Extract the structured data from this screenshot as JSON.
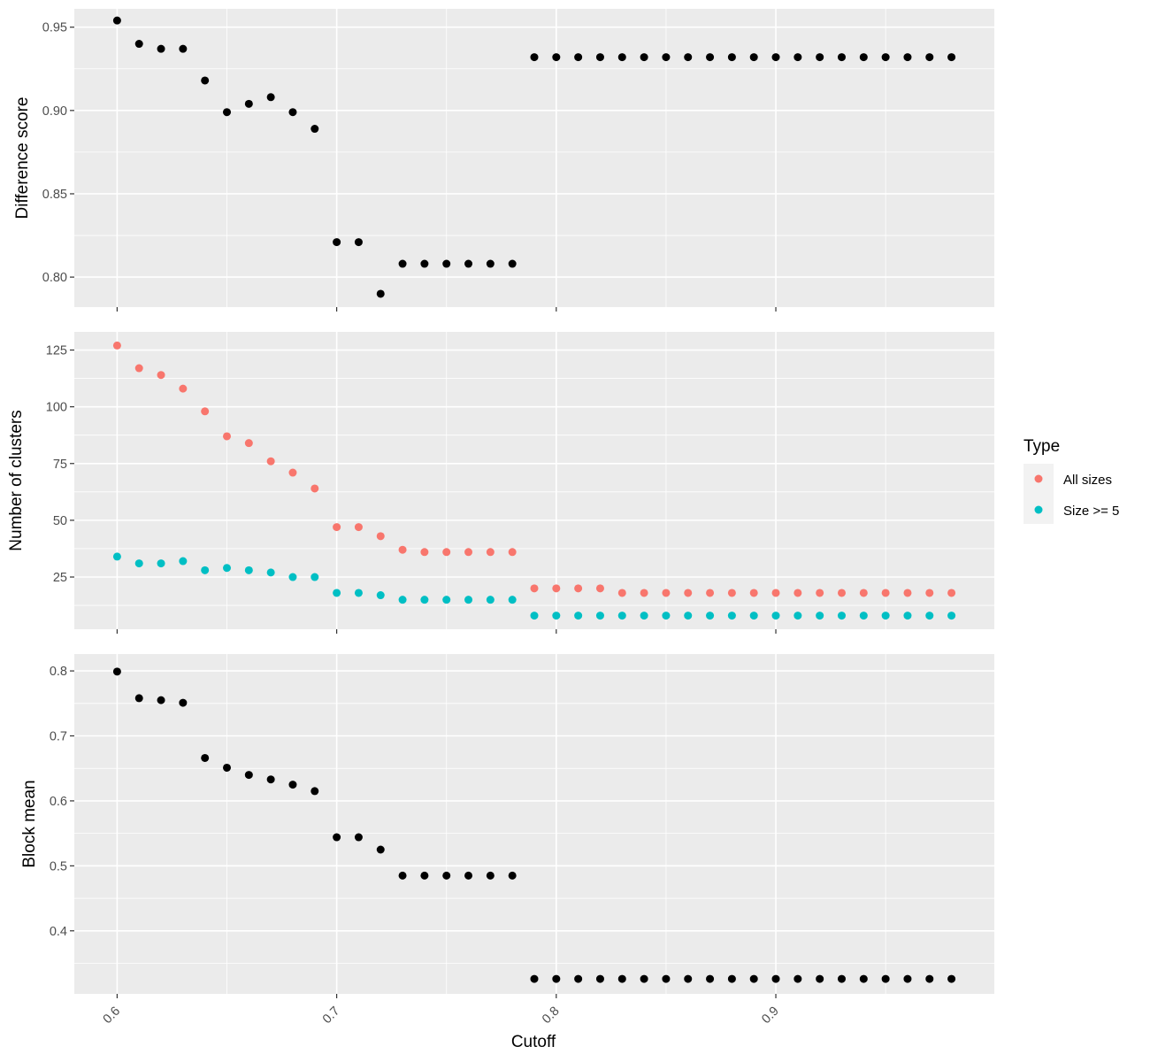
{
  "chart_data": [
    {
      "type": "scatter",
      "ylabel": "Difference score",
      "xlabel": "",
      "xlim": [
        0.5805,
        0.9995
      ],
      "ylim": [
        0.782,
        0.961
      ],
      "x_ticks": [
        0.6,
        0.7,
        0.8,
        0.9
      ],
      "x_tick_labels": [],
      "y_ticks": [
        0.8,
        0.85,
        0.9,
        0.95
      ],
      "y_tick_labels": [
        "0.80",
        "0.85",
        "0.90",
        "0.95"
      ],
      "series": [
        {
          "color": "#000000",
          "x": [
            0.6,
            0.61,
            0.62,
            0.63,
            0.64,
            0.65,
            0.66,
            0.67,
            0.68,
            0.69,
            0.7,
            0.71,
            0.72,
            0.73,
            0.74,
            0.75,
            0.76,
            0.77,
            0.78,
            0.79,
            0.8,
            0.81,
            0.82,
            0.83,
            0.84,
            0.85,
            0.86,
            0.87,
            0.88,
            0.89,
            0.9,
            0.91,
            0.92,
            0.93,
            0.94,
            0.95,
            0.96,
            0.97,
            0.98
          ],
          "y": [
            0.954,
            0.94,
            0.937,
            0.937,
            0.918,
            0.899,
            0.904,
            0.908,
            0.899,
            0.889,
            0.821,
            0.821,
            0.79,
            0.808,
            0.808,
            0.808,
            0.808,
            0.808,
            0.808,
            0.932,
            0.932,
            0.932,
            0.932,
            0.932,
            0.932,
            0.932,
            0.932,
            0.932,
            0.932,
            0.932,
            0.932,
            0.932,
            0.932,
            0.932,
            0.932,
            0.932,
            0.932,
            0.932,
            0.932
          ]
        }
      ]
    },
    {
      "type": "scatter",
      "ylabel": "Number of clusters",
      "xlabel": "",
      "xlim": [
        0.5805,
        0.9995
      ],
      "ylim": [
        2,
        133
      ],
      "x_ticks": [
        0.6,
        0.7,
        0.8,
        0.9
      ],
      "x_tick_labels": [],
      "y_ticks": [
        25,
        50,
        75,
        100,
        125
      ],
      "y_tick_labels": [
        "25",
        "50",
        "75",
        "100",
        "125"
      ],
      "legend": {
        "title": "Type",
        "position": "right",
        "entries": [
          {
            "label": "All sizes",
            "color": "#F8766D"
          },
          {
            "label": "Size >= 5",
            "color": "#00BFC4"
          }
        ]
      },
      "series": [
        {
          "name": "All sizes",
          "color": "#F8766D",
          "x": [
            0.6,
            0.61,
            0.62,
            0.63,
            0.64,
            0.65,
            0.66,
            0.67,
            0.68,
            0.69,
            0.7,
            0.71,
            0.72,
            0.73,
            0.74,
            0.75,
            0.76,
            0.77,
            0.78,
            0.79,
            0.8,
            0.81,
            0.82,
            0.83,
            0.84,
            0.85,
            0.86,
            0.87,
            0.88,
            0.89,
            0.9,
            0.91,
            0.92,
            0.93,
            0.94,
            0.95,
            0.96,
            0.97,
            0.98
          ],
          "y": [
            127,
            117,
            114,
            108,
            98,
            87,
            84,
            76,
            71,
            64,
            47,
            47,
            43,
            37,
            36,
            36,
            36,
            36,
            36,
            20,
            20,
            20,
            20,
            18,
            18,
            18,
            18,
            18,
            18,
            18,
            18,
            18,
            18,
            18,
            18,
            18,
            18,
            18,
            18
          ]
        },
        {
          "name": "Size >= 5",
          "color": "#00BFC4",
          "x": [
            0.6,
            0.61,
            0.62,
            0.63,
            0.64,
            0.65,
            0.66,
            0.67,
            0.68,
            0.69,
            0.7,
            0.71,
            0.72,
            0.73,
            0.74,
            0.75,
            0.76,
            0.77,
            0.78,
            0.79,
            0.8,
            0.81,
            0.82,
            0.83,
            0.84,
            0.85,
            0.86,
            0.87,
            0.88,
            0.89,
            0.9,
            0.91,
            0.92,
            0.93,
            0.94,
            0.95,
            0.96,
            0.97,
            0.98
          ],
          "y": [
            34,
            31,
            31,
            32,
            28,
            29,
            28,
            27,
            25,
            25,
            18,
            18,
            17,
            15,
            15,
            15,
            15,
            15,
            15,
            8,
            8,
            8,
            8,
            8,
            8,
            8,
            8,
            8,
            8,
            8,
            8,
            8,
            8,
            8,
            8,
            8,
            8,
            8,
            8
          ]
        }
      ]
    },
    {
      "type": "scatter",
      "ylabel": "Block mean",
      "xlabel": "Cutoff",
      "xlim": [
        0.5805,
        0.9995
      ],
      "ylim": [
        0.303,
        0.826
      ],
      "x_ticks": [
        0.6,
        0.7,
        0.8,
        0.9
      ],
      "x_tick_labels": [
        "0.6",
        "0.7",
        "0.8",
        "0.9"
      ],
      "y_ticks": [
        0.4,
        0.5,
        0.6,
        0.7,
        0.8
      ],
      "y_tick_labels": [
        "0.4",
        "0.5",
        "0.6",
        "0.7",
        "0.8"
      ],
      "series": [
        {
          "color": "#000000",
          "x": [
            0.6,
            0.61,
            0.62,
            0.63,
            0.64,
            0.65,
            0.66,
            0.67,
            0.68,
            0.69,
            0.7,
            0.71,
            0.72,
            0.73,
            0.74,
            0.75,
            0.76,
            0.77,
            0.78,
            0.79,
            0.8,
            0.81,
            0.82,
            0.83,
            0.84,
            0.85,
            0.86,
            0.87,
            0.88,
            0.89,
            0.9,
            0.91,
            0.92,
            0.93,
            0.94,
            0.95,
            0.96,
            0.97,
            0.98
          ],
          "y": [
            0.799,
            0.758,
            0.755,
            0.751,
            0.666,
            0.651,
            0.64,
            0.633,
            0.625,
            0.615,
            0.544,
            0.544,
            0.525,
            0.485,
            0.485,
            0.485,
            0.485,
            0.485,
            0.485,
            0.326,
            0.326,
            0.326,
            0.326,
            0.326,
            0.326,
            0.326,
            0.326,
            0.326,
            0.326,
            0.326,
            0.326,
            0.326,
            0.326,
            0.326,
            0.326,
            0.326,
            0.326,
            0.326,
            0.326
          ]
        }
      ]
    }
  ]
}
